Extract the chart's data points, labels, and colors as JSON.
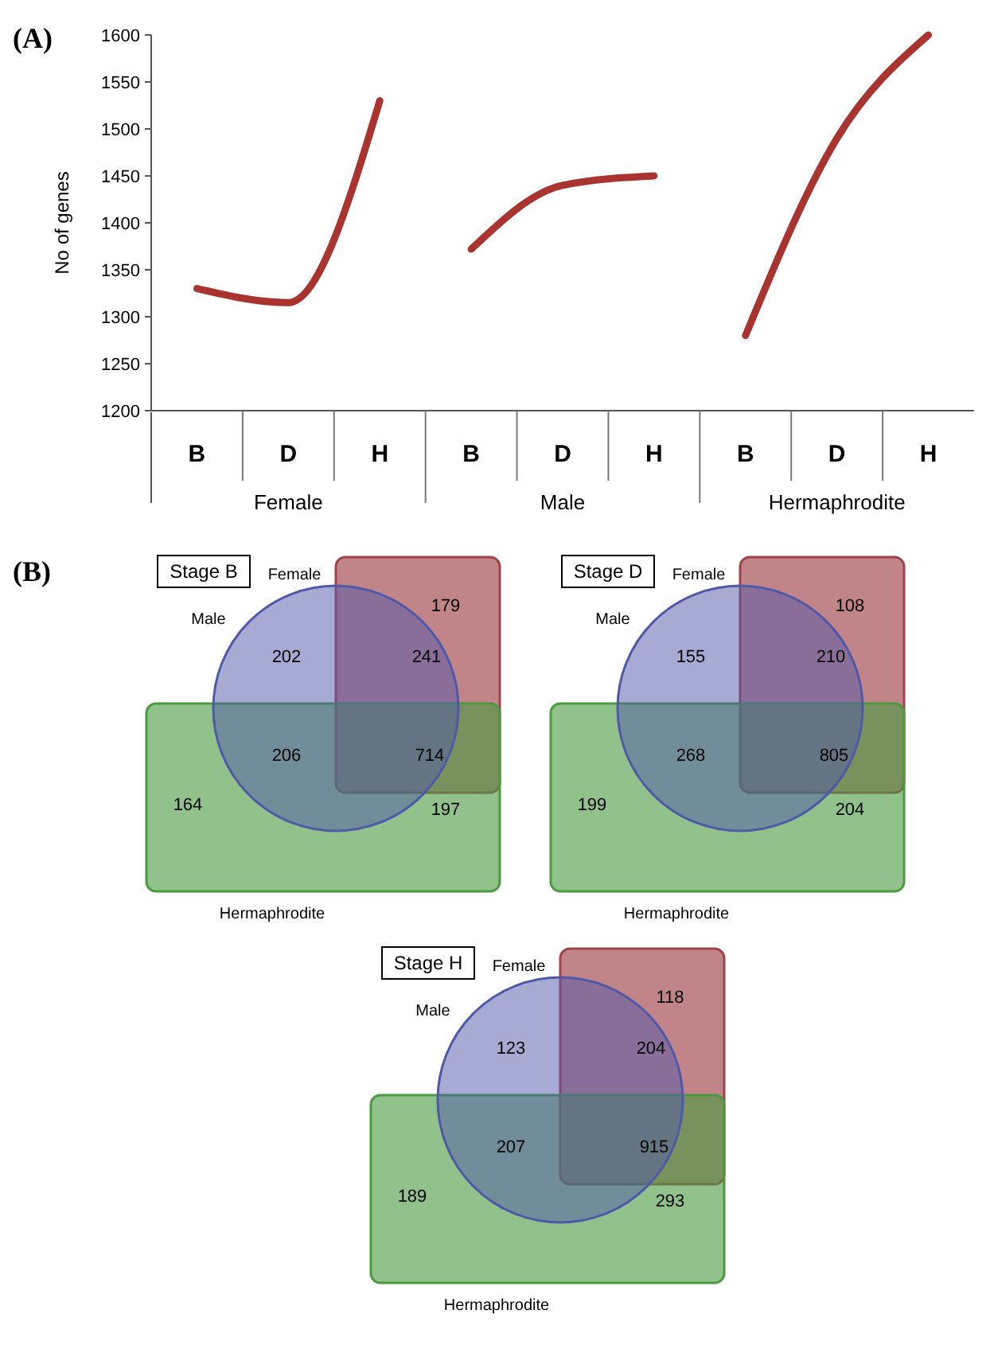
{
  "chart_data": [
    {
      "type": "line",
      "ylabel": "No of genes",
      "annotations": [
        "(A)",
        "Female",
        "Male",
        "Hermaphrodite"
      ],
      "categories": [
        "B",
        "D",
        "H",
        "B",
        "D",
        "H",
        "B",
        "D",
        "H"
      ],
      "ylim": [
        1200,
        1600
      ],
      "yticks": [
        1200,
        1250,
        1300,
        1350,
        1400,
        1450,
        1500,
        1550,
        1600
      ],
      "grid": false,
      "marker": "none",
      "line_style": "solid",
      "series": [
        {
          "color": "#a8332f",
          "values": [
            1330,
            1315,
            1530,
            null,
            null,
            null,
            null,
            null,
            null
          ]
        },
        {
          "color": "#a8332f",
          "values": [
            null,
            null,
            null,
            1372,
            1440,
            1450,
            null,
            null,
            null
          ]
        },
        {
          "color": "#a8332f",
          "values": [
            null,
            null,
            null,
            null,
            null,
            null,
            1280,
            1490,
            1600
          ]
        }
      ]
    },
    {
      "type": "other",
      "title": "Stage B",
      "colors": [
        "#a0424a",
        "#5058a8",
        "#4a9a40"
      ],
      "annotations": [
        "(B)",
        "202",
        "241",
        "206",
        "714",
        "179",
        "164",
        "197",
        "Female",
        "Male",
        "Hermaphrodite"
      ]
    },
    {
      "type": "other",
      "title": "Stage D",
      "colors": [
        "#a0424a",
        "#5058a8",
        "#4a9a40"
      ],
      "annotations": [
        "155",
        "210",
        "268",
        "805",
        "108",
        "199",
        "204",
        "Female",
        "Male",
        "Hermaphrodite"
      ]
    },
    {
      "type": "other",
      "title": "Stage H",
      "colors": [
        "#a0424a",
        "#5058a8",
        "#4a9a40"
      ],
      "annotations": [
        "123",
        "204",
        "207",
        "915",
        "118",
        "189",
        "293",
        "Female",
        "Male",
        "Hermaphrodite"
      ]
    }
  ]
}
